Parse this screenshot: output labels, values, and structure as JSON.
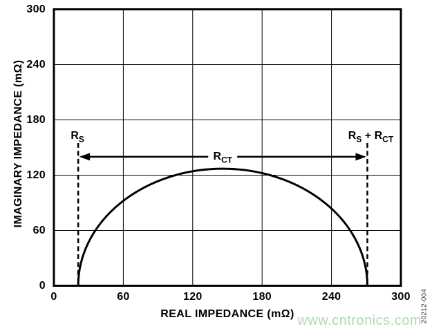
{
  "figure": {
    "watermark": "www.cntronics.com",
    "watermark_color": "#aedcae",
    "figure_code": "20212-004",
    "line_color": "#000000",
    "background_color": "#ffffff"
  },
  "chart_data": {
    "type": "line",
    "title": "",
    "xlabel": "REAL IMPEDANCE (mΩ)",
    "ylabel": "IMAGINARY IMPEDANCE (mΩ)",
    "xlim": [
      0,
      300
    ],
    "ylim": [
      0,
      300
    ],
    "xticks": [
      0,
      60,
      120,
      180,
      240,
      300
    ],
    "yticks": [
      0,
      60,
      120,
      180,
      240,
      300
    ],
    "grid": true,
    "legend": "none",
    "series": [
      {
        "name": "nyquist-impedance-semicircle",
        "shape": "semicircle",
        "x_start": 21,
        "x_end": 271,
        "peak_height": 127,
        "points": [
          {
            "x": 21,
            "y": 0
          },
          {
            "x": 45,
            "y": 75
          },
          {
            "x": 70,
            "y": 101
          },
          {
            "x": 95,
            "y": 116
          },
          {
            "x": 120,
            "y": 124
          },
          {
            "x": 146,
            "y": 127
          },
          {
            "x": 170,
            "y": 125
          },
          {
            "x": 195,
            "y": 117
          },
          {
            "x": 220,
            "y": 102
          },
          {
            "x": 245,
            "y": 78
          },
          {
            "x": 271,
            "y": 0
          }
        ]
      }
    ],
    "annotations": {
      "rs_dashed_line_x": 21,
      "rs_rct_dashed_line_x": 271,
      "dashed_line_top_y": 155,
      "arrow_y": 140,
      "labels": {
        "rs": {
          "base": "R",
          "sub": "S"
        },
        "rct": {
          "base": "R",
          "sub": "CT"
        },
        "rs_plus_rct": {
          "part1": "R",
          "sub1": "S",
          "part2": " + R",
          "sub2": "CT"
        }
      }
    }
  }
}
